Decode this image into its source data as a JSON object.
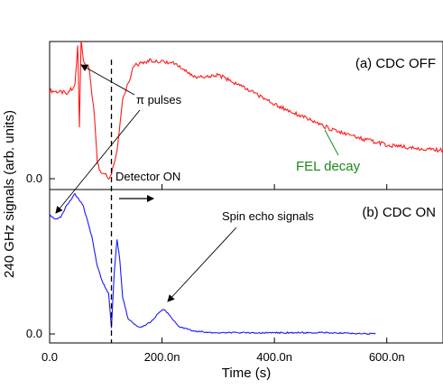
{
  "chart_data": [
    {
      "type": "line",
      "panel_label": "(a) CDC OFF",
      "color": "#ff1a1a",
      "xlim": [
        0,
        7e-07
      ],
      "x": [
        0,
        3e-08,
        4.5e-08,
        5e-08,
        5.3e-08,
        5.6e-08,
        6e-08,
        7e-08,
        8e-08,
        8.5e-08,
        9e-08,
        1e-07,
        1.05e-07,
        1.1e-07,
        1.2e-07,
        1.3e-07,
        1.5e-07,
        1.8e-07,
        2.2e-07,
        2.6e-07,
        3e-07,
        3.5e-07,
        4e-07,
        4.5e-07,
        5e-07,
        5.5e-07,
        6e-07,
        6.5e-07,
        7e-07
      ],
      "y": [
        0.78,
        0.76,
        0.82,
        1.18,
        0.45,
        1.22,
        1.05,
        0.98,
        0.55,
        0.14,
        0.07,
        0.04,
        -0.02,
        0.05,
        0.25,
        0.7,
        1.0,
        1.05,
        1.03,
        0.9,
        0.92,
        0.8,
        0.66,
        0.55,
        0.44,
        0.36,
        0.3,
        0.27,
        0.25
      ],
      "ytick_labels": [
        "0.0"
      ]
    },
    {
      "type": "line",
      "panel_label": "(b) CDC ON",
      "color": "#1a1aff",
      "xlim": [
        0,
        7e-07
      ],
      "x": [
        0,
        1e-08,
        2e-08,
        3e-08,
        4.5e-08,
        6e-08,
        7.5e-08,
        8.5e-08,
        9.5e-08,
        1.05e-07,
        1.1e-07,
        1.15e-07,
        1.2e-07,
        1.25e-07,
        1.3e-07,
        1.4e-07,
        1.6e-07,
        1.8e-07,
        1.9e-07,
        2e-07,
        2.05e-07,
        2.1e-07,
        2.3e-07,
        2.6e-07,
        3e-07,
        4e-07,
        5e-07,
        5.8e-07
      ],
      "y": [
        0.98,
        0.94,
        0.96,
        1.05,
        1.15,
        1.05,
        0.8,
        0.55,
        0.42,
        0.33,
        0.05,
        0.5,
        0.78,
        0.6,
        0.3,
        0.12,
        0.05,
        0.1,
        0.15,
        0.2,
        0.2,
        0.17,
        0.06,
        0.02,
        0.01,
        0.01,
        0.01,
        0.0
      ],
      "ytick_labels": [
        "0.0"
      ]
    }
  ],
  "axes": {
    "xlabel": "Time (s)",
    "ylabel": "240 GHz signals (arb. units)",
    "xticks": [
      0,
      2e-07,
      4e-07,
      6e-07
    ],
    "xtick_labels": [
      "0.0",
      "200.0n",
      "400.0n",
      "600.0n"
    ]
  },
  "annotations": {
    "pi_pulses": "π pulses",
    "detector_on": "Detector ON",
    "fel_decay": "FEL decay",
    "spin_echo": "Spin echo signals"
  },
  "dashed_line_x": 1.1e-07
}
